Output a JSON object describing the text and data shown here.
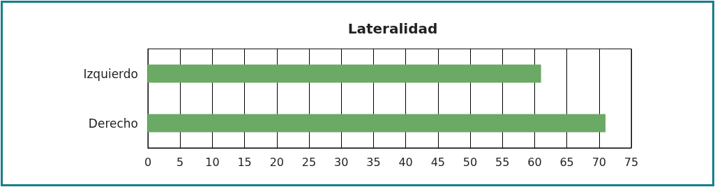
{
  "chart_data": {
    "type": "bar",
    "orientation": "horizontal",
    "title": "Lateralidad",
    "categories": [
      "Izquierdo",
      "Derecho"
    ],
    "values": [
      61,
      71
    ],
    "color": "#6aaa64",
    "xlim": [
      0,
      75
    ],
    "xticks": [
      0,
      5,
      10,
      15,
      20,
      25,
      30,
      35,
      40,
      45,
      50,
      55,
      60,
      65,
      70,
      75
    ],
    "grid": "x"
  }
}
